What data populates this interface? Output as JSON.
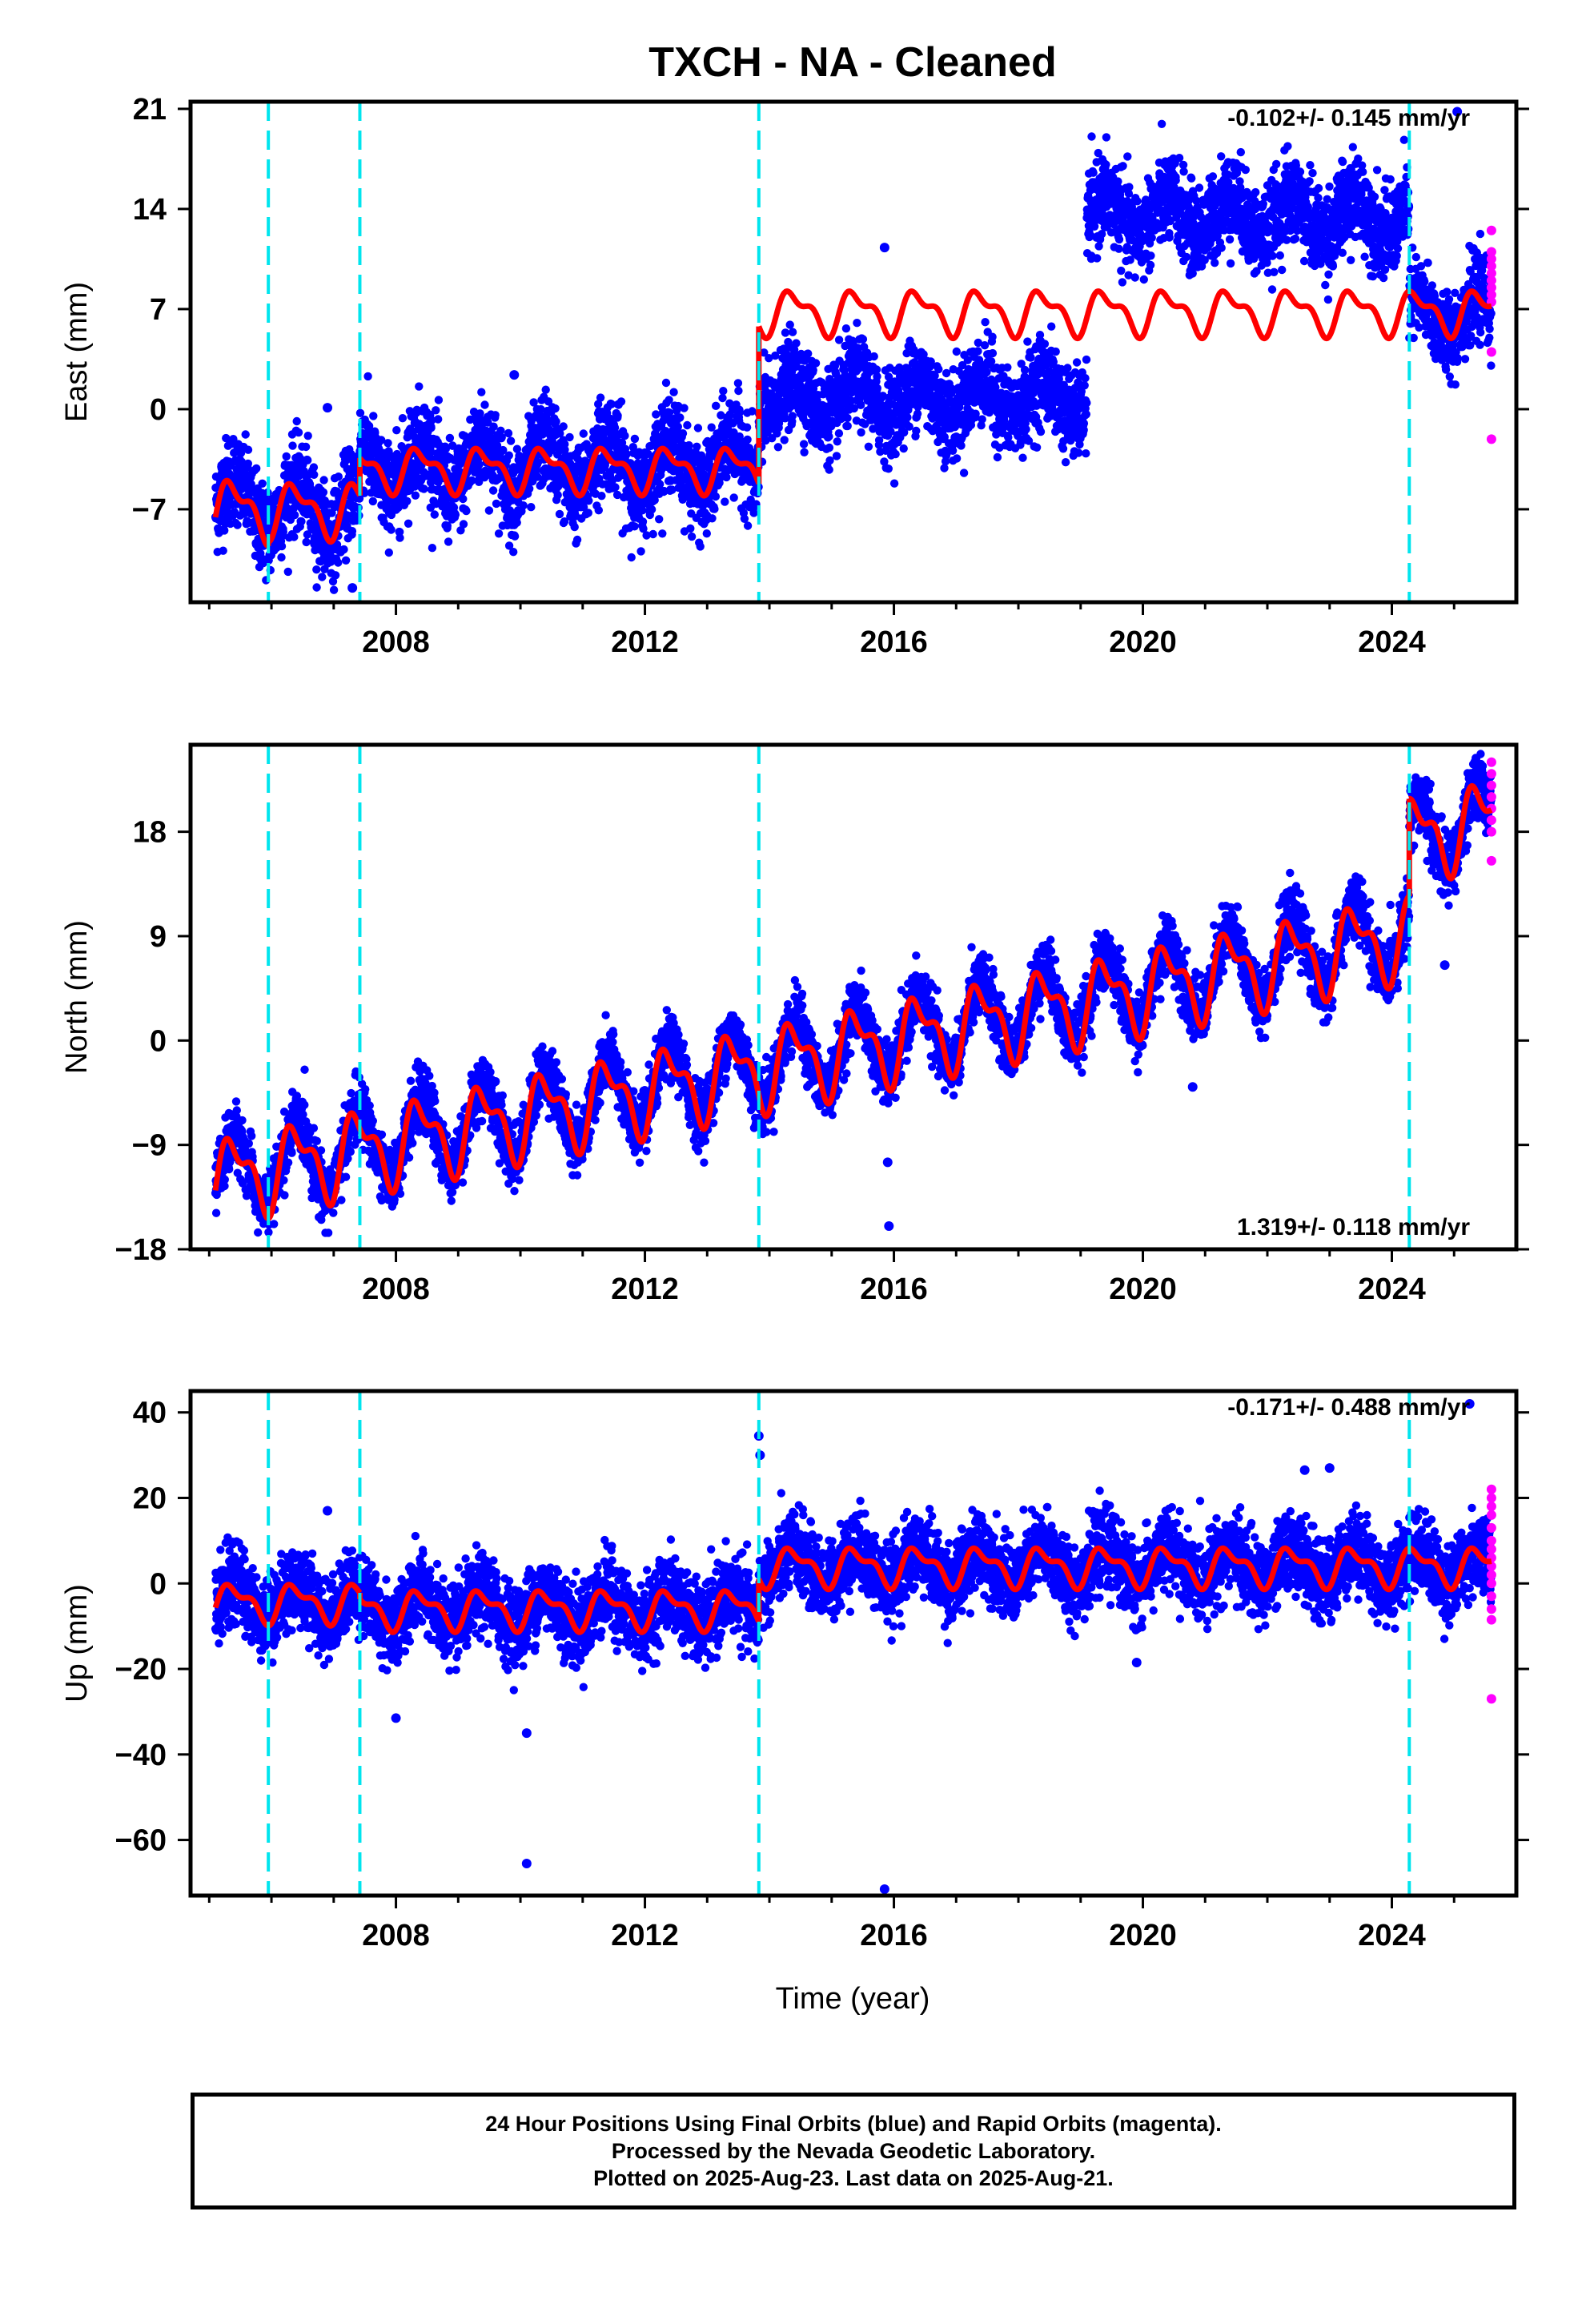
{
  "title": "TXCH  - NA - Cleaned",
  "xlabel": "Time (year)",
  "x_ticks": [
    "2008",
    "2012",
    "2016",
    "2020",
    "2024"
  ],
  "caption": {
    "line1": "24 Hour Positions Using Final Orbits (blue) and Rapid Orbits (magenta).",
    "line2": "Processed by the Nevada Geodetic Laboratory.",
    "line3": "Plotted on 2025-Aug-23. Last data on 2025-Aug-21."
  },
  "colors": {
    "final_orbits": "#0000ff",
    "rapid_orbits": "#ff00ff",
    "model": "#ff0000",
    "equipment_change": "#00e5ee"
  },
  "chart_data": [
    {
      "type": "scatter",
      "panel": "east",
      "ylabel": "East (mm)",
      "yticks": [
        -7,
        0,
        7,
        14,
        21
      ],
      "ylim": [
        -13.5,
        21.5
      ],
      "xlim": [
        2004.7,
        2026.0
      ],
      "rate": "-0.102+/- 0.145 mm/yr",
      "rate_position": "top-right",
      "equipment_changes": [
        2005.95,
        2007.42,
        2013.83,
        2024.28
      ],
      "segments": [
        {
          "start": 2005.1,
          "end": 2005.95,
          "offset": -6.5,
          "amp": 1.8,
          "noise": 1.6
        },
        {
          "start": 2005.95,
          "end": 2007.42,
          "offset": -7.0,
          "amp": 1.8,
          "noise": 1.6
        },
        {
          "start": 2007.42,
          "end": 2013.83,
          "offset": -4.0,
          "amp": 1.8,
          "noise": 1.6
        },
        {
          "start": 2013.83,
          "end": 2019.1,
          "offset": 0.8,
          "amp": 1.3,
          "noise": 1.5
        },
        {
          "start": 2019.1,
          "end": 2024.28,
          "offset": 13.5,
          "amp": 1.3,
          "noise": 1.5
        },
        {
          "start": 2024.28,
          "end": 2025.6,
          "offset": 6.5,
          "amp": 1.3,
          "noise": 1.4
        }
      ],
      "model_segments": [
        {
          "start": 2005.1,
          "end": 2005.95,
          "offset": -7.0,
          "amp": 1.8
        },
        {
          "start": 2005.95,
          "end": 2007.42,
          "offset": -7.0,
          "amp": 1.6
        },
        {
          "start": 2007.42,
          "end": 2013.83,
          "offset": -4.2,
          "amp": 1.3
        },
        {
          "start": 2013.83,
          "end": 2024.28,
          "offset": 6.8,
          "amp": 1.3
        },
        {
          "start": 2024.28,
          "end": 2025.6,
          "offset": 6.8,
          "amp": 1.3
        }
      ],
      "outliers": [
        [
          2015.85,
          11.3
        ],
        [
          2009.9,
          2.4
        ],
        [
          2007.3,
          -12.5
        ],
        [
          2006.9,
          0.1
        ],
        [
          2025.05,
          20.8
        ]
      ],
      "rapid": {
        "x": 2025.6,
        "values": [
          12.5,
          11.0,
          10.5,
          10.0,
          9.5,
          9.0,
          8.5,
          8.0,
          7.5,
          4.0,
          -2.1
        ]
      }
    },
    {
      "type": "scatter",
      "panel": "north",
      "ylabel": "North (mm)",
      "yticks": [
        -18,
        -9,
        0,
        9,
        18
      ],
      "ylim": [
        -18,
        25.5
      ],
      "xlim": [
        2004.7,
        2026.0
      ],
      "rate": "1.319+/- 0.118 mm/yr",
      "rate_position": "bottom-right",
      "equipment_changes": [
        2005.95,
        2007.42,
        2013.83,
        2024.28
      ],
      "segments": [
        {
          "start": 2005.1,
          "end": 2024.28,
          "offset": -11.8,
          "slope": 1.1,
          "amp": 3.2,
          "noise": 1.3,
          "t0": 2005.1
        },
        {
          "start": 2024.28,
          "end": 2025.6,
          "offset": 17.5,
          "slope": 1.1,
          "amp": 3.2,
          "noise": 1.4,
          "t0": 2024.28
        }
      ],
      "model_segments": [
        {
          "start": 2005.1,
          "end": 2024.28,
          "offset": -12.0,
          "slope": 1.1,
          "amp": 3.0,
          "t0": 2005.1
        },
        {
          "start": 2024.28,
          "end": 2025.6,
          "offset": 17.5,
          "slope": 1.1,
          "amp": 3.0,
          "t0": 2024.28
        }
      ],
      "outliers": [
        [
          2015.9,
          -10.5
        ],
        [
          2015.92,
          -16.0
        ],
        [
          2020.8,
          -4.0
        ],
        [
          2024.85,
          6.5
        ]
      ],
      "rapid": {
        "x": 2025.6,
        "values": [
          24.0,
          23.0,
          22.0,
          21.0,
          20.0,
          19.0,
          18.0,
          15.5
        ]
      }
    },
    {
      "type": "scatter",
      "panel": "up",
      "ylabel": "Up (mm)",
      "yticks": [
        -60,
        -40,
        -20,
        0,
        20,
        40
      ],
      "ylim": [
        -73,
        45
      ],
      "xlim": [
        2004.7,
        2026.0
      ],
      "rate": "-0.171+/- 0.488 mm/yr",
      "rate_position": "top-right",
      "equipment_changes": [
        2005.95,
        2007.42,
        2013.83,
        2024.28
      ],
      "segments": [
        {
          "start": 2005.1,
          "end": 2007.42,
          "offset": -4.0,
          "amp": 4.0,
          "noise": 4.5
        },
        {
          "start": 2007.42,
          "end": 2013.83,
          "offset": -6.0,
          "amp": 4.0,
          "noise": 4.5
        },
        {
          "start": 2013.83,
          "end": 2025.6,
          "offset": 4.0,
          "amp": 4.0,
          "noise": 4.5
        }
      ],
      "model_segments": [
        {
          "start": 2005.1,
          "end": 2007.42,
          "offset": -4.5,
          "amp": 3.8
        },
        {
          "start": 2007.42,
          "end": 2013.83,
          "offset": -6.0,
          "amp": 3.8
        },
        {
          "start": 2013.83,
          "end": 2025.6,
          "offset": 4.0,
          "amp": 3.8
        }
      ],
      "outliers": [
        [
          2010.1,
          -35.0
        ],
        [
          2010.1,
          -65.5
        ],
        [
          2015.85,
          -71.5
        ],
        [
          2013.83,
          34.5
        ],
        [
          2013.85,
          30.0
        ],
        [
          2008.0,
          -31.5
        ],
        [
          2006.9,
          17.0
        ],
        [
          2025.25,
          42.0
        ],
        [
          2022.6,
          26.5
        ],
        [
          2023.0,
          27.0
        ],
        [
          2019.9,
          -18.5
        ]
      ],
      "rapid": {
        "x": 2025.6,
        "values": [
          22.0,
          20.0,
          18.0,
          16.0,
          13.0,
          10.0,
          8.0,
          6.0,
          4.0,
          2.0,
          0.0,
          -3.0,
          -6.0,
          -8.5,
          -27.0
        ]
      }
    }
  ]
}
